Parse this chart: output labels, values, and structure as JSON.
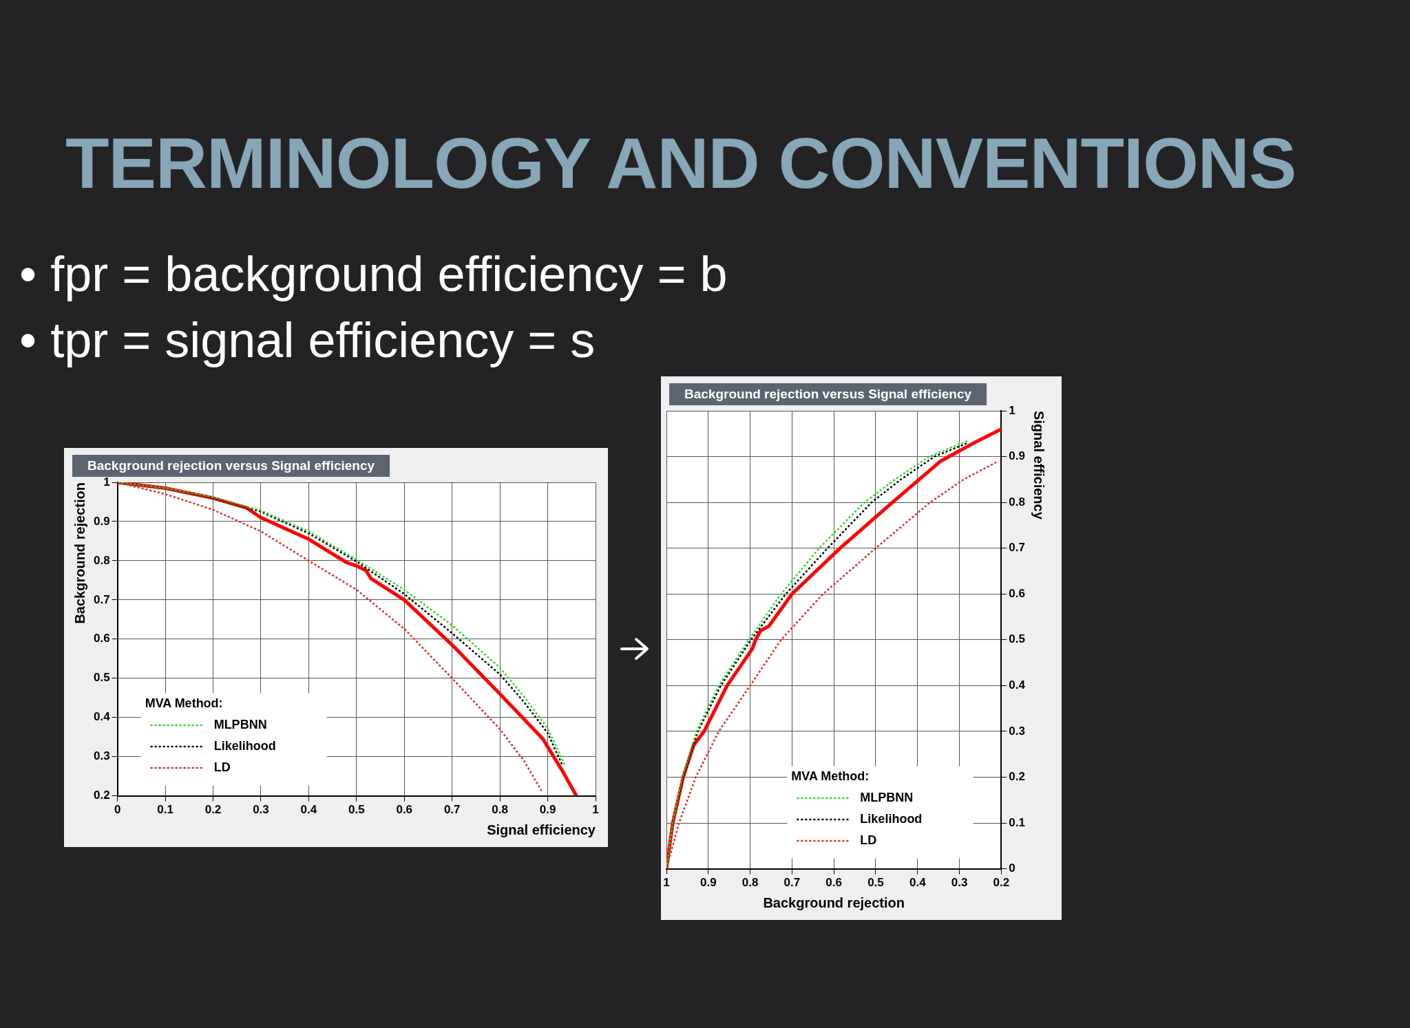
{
  "chart_data": [
    {
      "type": "other",
      "title": "TERMINOLOGY AND CONVENTIONS",
      "annotations": [
        "• fpr = background efficiency = b",
        "• tpr = signal efficiency = s"
      ]
    },
    {
      "type": "line",
      "title": "Background rejection versus Signal efficiency",
      "xlabel": "Signal efficiency",
      "ylabel": "Background rejection",
      "legend_title": "MVA Method:",
      "legend": "bottom left",
      "grid": true,
      "marker": "none",
      "xlim": [
        0,
        1
      ],
      "xticks": [
        0,
        0.1,
        0.2,
        0.3,
        0.4,
        0.5,
        0.6,
        0.7,
        0.8,
        0.9,
        1
      ],
      "ylim": [
        0.2,
        1
      ],
      "yticks": [
        0.2,
        0.3,
        0.4,
        0.5,
        0.6,
        0.7,
        0.8,
        0.9,
        1
      ],
      "series": [
        {
          "name": "MLPBNN",
          "color": "#22dd22",
          "line_style": "dotted",
          "x": [
            0,
            0.1,
            0.2,
            0.3,
            0.4,
            0.5,
            0.6,
            0.7,
            0.8,
            0.85,
            0.9,
            0.935
          ],
          "values": [
            1,
            0.985,
            0.962,
            0.928,
            0.875,
            0.803,
            0.726,
            0.635,
            0.527,
            0.454,
            0.372,
            0.28
          ]
        },
        {
          "name": "Likelihood",
          "color": "#000000",
          "line_style": "dotted",
          "x": [
            0,
            0.1,
            0.2,
            0.3,
            0.4,
            0.5,
            0.6,
            0.7,
            0.8,
            0.85,
            0.9,
            0.93
          ],
          "values": [
            1,
            0.984,
            0.96,
            0.925,
            0.87,
            0.798,
            0.715,
            0.615,
            0.51,
            0.44,
            0.36,
            0.28
          ]
        },
        {
          "name": "LD",
          "color": "#ee2222",
          "line_style": "dotted",
          "x": [
            0,
            0.1,
            0.2,
            0.3,
            0.4,
            0.5,
            0.6,
            0.7,
            0.8,
            0.85,
            0.889
          ],
          "values": [
            1,
            0.97,
            0.93,
            0.875,
            0.8,
            0.726,
            0.626,
            0.5,
            0.37,
            0.29,
            0.209
          ]
        },
        {
          "color": "#ff0000",
          "line_style": "solid",
          "x": [
            0,
            0.1,
            0.2,
            0.27,
            0.3,
            0.4,
            0.48,
            0.5,
            0.52,
            0.53,
            0.6,
            0.7,
            0.8,
            0.89,
            0.9,
            0.93,
            0.96
          ],
          "values": [
            1,
            0.985,
            0.96,
            0.935,
            0.91,
            0.855,
            0.795,
            0.787,
            0.775,
            0.755,
            0.7,
            0.585,
            0.46,
            0.345,
            0.325,
            0.265,
            0.2
          ]
        }
      ]
    },
    {
      "type": "line",
      "title": "Background rejection versus Signal efficiency",
      "xlabel": "Background rejection",
      "y2label": "Signal efficiency",
      "legend_title": "MVA Method:",
      "legend": "bottom right",
      "grid": true,
      "marker": "none",
      "xlim": [
        1,
        0.2
      ],
      "xticks": [
        0.2,
        0.3,
        0.4,
        0.5,
        0.6,
        0.7,
        0.8,
        0.9,
        1
      ],
      "y2lim": [
        0,
        1
      ],
      "y2ticks": [
        0,
        0.1,
        0.2,
        0.3,
        0.4,
        0.5,
        0.6,
        0.7,
        0.8,
        0.9,
        1
      ],
      "series": [
        {
          "name": "MLPBNN",
          "color": "#22dd22",
          "line_style": "dotted",
          "axis": "y2",
          "x": [
            1,
            0.985,
            0.962,
            0.928,
            0.875,
            0.803,
            0.726,
            0.635,
            0.527,
            0.454,
            0.372,
            0.28
          ],
          "values": [
            0,
            0.1,
            0.2,
            0.3,
            0.4,
            0.5,
            0.6,
            0.7,
            0.8,
            0.85,
            0.9,
            0.935
          ]
        },
        {
          "name": "Likelihood",
          "color": "#000000",
          "line_style": "dotted",
          "axis": "y2",
          "x": [
            1,
            0.984,
            0.96,
            0.925,
            0.87,
            0.798,
            0.715,
            0.615,
            0.51,
            0.44,
            0.36,
            0.28
          ],
          "values": [
            0,
            0.1,
            0.2,
            0.3,
            0.4,
            0.5,
            0.6,
            0.7,
            0.8,
            0.85,
            0.9,
            0.93
          ]
        },
        {
          "name": "LD",
          "color": "#ee2222",
          "line_style": "dotted",
          "axis": "y2",
          "x": [
            1,
            0.97,
            0.93,
            0.875,
            0.8,
            0.726,
            0.626,
            0.5,
            0.37,
            0.29,
            0.209
          ],
          "values": [
            0,
            0.1,
            0.2,
            0.3,
            0.4,
            0.5,
            0.6,
            0.7,
            0.8,
            0.85,
            0.889
          ]
        },
        {
          "color": "#ff0000",
          "line_style": "solid",
          "axis": "y2",
          "x": [
            1,
            0.985,
            0.96,
            0.935,
            0.91,
            0.855,
            0.795,
            0.787,
            0.775,
            0.755,
            0.7,
            0.585,
            0.46,
            0.345,
            0.325,
            0.265,
            0.2
          ],
          "values": [
            0,
            0.1,
            0.2,
            0.27,
            0.3,
            0.4,
            0.48,
            0.5,
            0.52,
            0.53,
            0.6,
            0.7,
            0.8,
            0.89,
            0.9,
            0.93,
            0.96
          ]
        }
      ]
    }
  ]
}
